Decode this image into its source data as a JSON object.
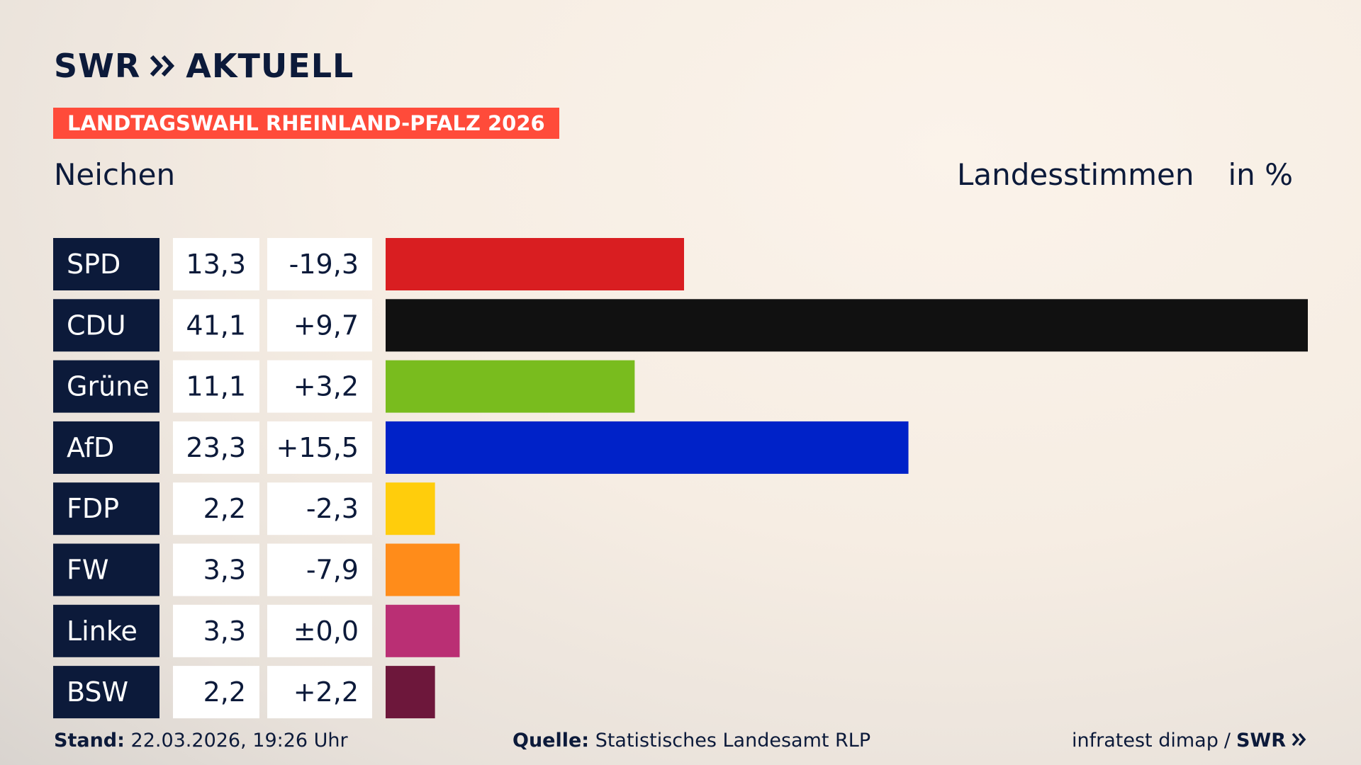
{
  "brand": {
    "swr": "SWR",
    "aktuell": "AKTUELL"
  },
  "banner": "LANDTAGSWAHL RHEINLAND-PFALZ 2026",
  "place": "Neichen",
  "header": {
    "metric": "Landesstimmen",
    "unit": "in %"
  },
  "chart_data": {
    "type": "bar",
    "orientation": "horizontal",
    "categories": [
      "SPD",
      "CDU",
      "Grüne",
      "AfD",
      "FDP",
      "FW",
      "Linke",
      "BSW"
    ],
    "values": [
      13.3,
      41.1,
      11.1,
      23.3,
      2.2,
      3.3,
      3.3,
      2.2
    ],
    "value_labels": [
      "13,3",
      "41,1",
      "11,1",
      "23,3",
      "2,2",
      "3,3",
      "3,3",
      "2,2"
    ],
    "diff_labels": [
      "-19,3",
      "+9,7",
      "+3,2",
      "+15,5",
      "-2,3",
      "-7,9",
      "±0,0",
      "+2,2"
    ],
    "colors": [
      "#d91e21",
      "#111111",
      "#79bc1e",
      "#0022c8",
      "#ffcd0c",
      "#ff8c1a",
      "#ba2f74",
      "#6d173b"
    ],
    "xlim": [
      0,
      41.1
    ]
  },
  "footer": {
    "stand_label": "Stand:",
    "stand_value": "22.03.2026, 19:26 Uhr",
    "quelle_label": "Quelle:",
    "quelle_value": "Statistisches Landesamt RLP",
    "credit": "infratest dimap",
    "credit_sep": "/",
    "credit_brand": "SWR"
  }
}
